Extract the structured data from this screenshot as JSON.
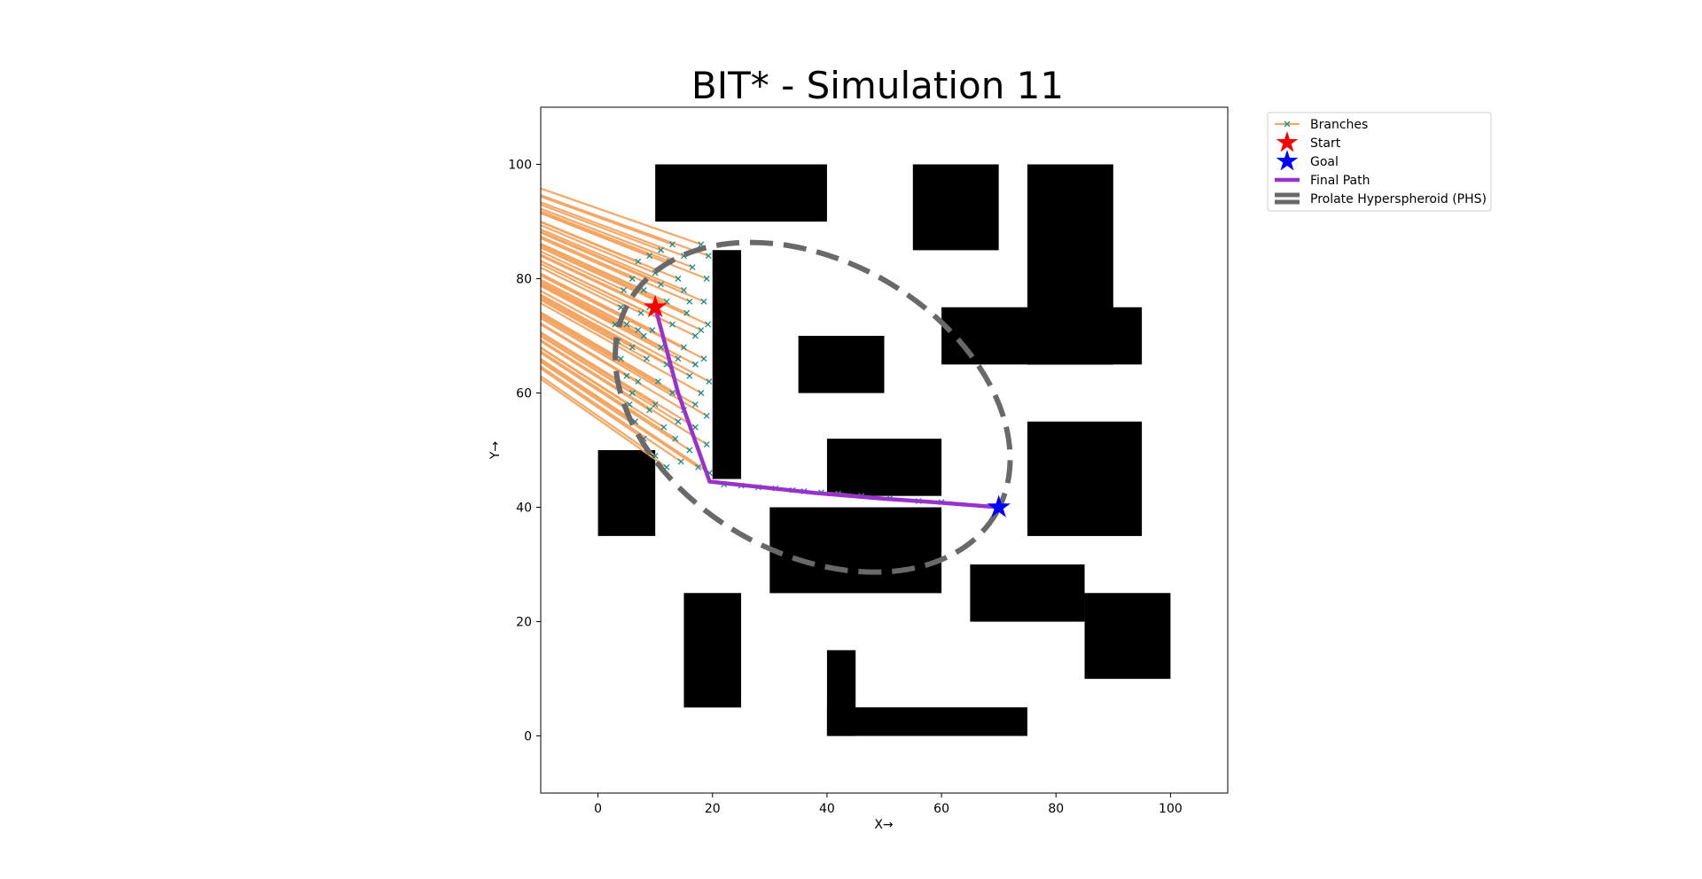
{
  "chart_data": {
    "type": "scatter",
    "title": "BIT* - Simulation 11",
    "xlabel": "X→",
    "ylabel": "Y→",
    "xlim": [
      -10,
      110
    ],
    "ylim": [
      -10,
      110
    ],
    "xticks": [
      0,
      20,
      40,
      60,
      80,
      100
    ],
    "yticks": [
      0,
      20,
      40,
      60,
      80,
      100
    ],
    "grid": false,
    "legend_placement": "outside top-right",
    "obstacles": [
      {
        "x": 10,
        "y": 90,
        "w": 30,
        "h": 10
      },
      {
        "x": 55,
        "y": 85,
        "w": 15,
        "h": 15
      },
      {
        "x": 75,
        "y": 65,
        "w": 15,
        "h": 35
      },
      {
        "x": 60,
        "y": 65,
        "w": 35,
        "h": 10
      },
      {
        "x": 20,
        "y": 45,
        "w": 5,
        "h": 40
      },
      {
        "x": 35,
        "y": 60,
        "w": 15,
        "h": 10
      },
      {
        "x": 40,
        "y": 42,
        "w": 20,
        "h": 10
      },
      {
        "x": 75,
        "y": 35,
        "w": 20,
        "h": 20
      },
      {
        "x": 0,
        "y": 35,
        "w": 10,
        "h": 15
      },
      {
        "x": 30,
        "y": 25,
        "w": 30,
        "h": 15
      },
      {
        "x": 65,
        "y": 20,
        "w": 20,
        "h": 10
      },
      {
        "x": 85,
        "y": 10,
        "w": 15,
        "h": 15
      },
      {
        "x": 15,
        "y": 5,
        "w": 10,
        "h": 20
      },
      {
        "x": 40,
        "y": 0,
        "w": 5,
        "h": 15
      },
      {
        "x": 40,
        "y": 0,
        "w": 35,
        "h": 5
      }
    ],
    "start": {
      "x": 10,
      "y": 75
    },
    "goal": {
      "x": 70,
      "y": 40
    },
    "final_path": [
      [
        10,
        75
      ],
      [
        14,
        60
      ],
      [
        19.5,
        44.5
      ],
      [
        38,
        42.5
      ],
      [
        50,
        41.5
      ],
      [
        60,
        40.8
      ],
      [
        70,
        40
      ]
    ],
    "phs": {
      "cx": 37.5,
      "cy": 57.5,
      "a": 37,
      "b": 25.5,
      "angle_deg": -30
    },
    "branch_nodes": [
      [
        3,
        72
      ],
      [
        3.5,
        69
      ],
      [
        4,
        66
      ],
      [
        4,
        75
      ],
      [
        4.5,
        78
      ],
      [
        5,
        63
      ],
      [
        5,
        72
      ],
      [
        5.5,
        58
      ],
      [
        6,
        80
      ],
      [
        6,
        68
      ],
      [
        6.5,
        55
      ],
      [
        7,
        83
      ],
      [
        7,
        62
      ],
      [
        7.5,
        74
      ],
      [
        8,
        52
      ],
      [
        8,
        78
      ],
      [
        8.5,
        66
      ],
      [
        9,
        84
      ],
      [
        9,
        57
      ],
      [
        9.5,
        71
      ],
      [
        10,
        49
      ],
      [
        10,
        81
      ],
      [
        10.5,
        62
      ],
      [
        11,
        68
      ],
      [
        11,
        85
      ],
      [
        11.5,
        54
      ],
      [
        12,
        76
      ],
      [
        12,
        47
      ],
      [
        12.5,
        83
      ],
      [
        13,
        60
      ],
      [
        13,
        72
      ],
      [
        13.5,
        52
      ],
      [
        14,
        80
      ],
      [
        14,
        66
      ],
      [
        14.5,
        48
      ],
      [
        15,
        84
      ],
      [
        15,
        57
      ],
      [
        15.5,
        74
      ],
      [
        16,
        50
      ],
      [
        16,
        63
      ],
      [
        16.5,
        82
      ],
      [
        17,
        70
      ],
      [
        17,
        54
      ],
      [
        17.5,
        47
      ],
      [
        18,
        86
      ],
      [
        18,
        60
      ],
      [
        18.5,
        76
      ],
      [
        18.5,
        66
      ],
      [
        19,
        51
      ],
      [
        19,
        80
      ],
      [
        19,
        56
      ],
      [
        19.2,
        72
      ],
      [
        19.3,
        84
      ],
      [
        19.4,
        62
      ],
      [
        19.5,
        46
      ],
      [
        15,
        78
      ],
      [
        13,
        86
      ],
      [
        11,
        79
      ],
      [
        8,
        70
      ],
      [
        6,
        60
      ],
      [
        17,
        65
      ],
      [
        14,
        55
      ],
      [
        12,
        65
      ],
      [
        16,
        76
      ],
      [
        18,
        71
      ],
      [
        9,
        75
      ],
      [
        7,
        71
      ],
      [
        10,
        58
      ],
      [
        15,
        68
      ],
      [
        17,
        58
      ],
      [
        22,
        44
      ],
      [
        25,
        43.8
      ],
      [
        28,
        43.5
      ],
      [
        31,
        43.3
      ],
      [
        34,
        43
      ],
      [
        36,
        42.8
      ],
      [
        39,
        42.6
      ],
      [
        42,
        42.4
      ],
      [
        46,
        42
      ],
      [
        51,
        41.6
      ],
      [
        56,
        41.1
      ],
      [
        60,
        40.9
      ]
    ],
    "legend": [
      "Branches",
      "Start",
      "Goal",
      "Final Path",
      "Prolate Hyperspheroid (PHS)"
    ],
    "colors": {
      "branch_line": "#f4a460",
      "branch_marker": "#1a8a8a",
      "start": "#ff0000",
      "goal": "#0000ff",
      "final_path": "#9932cc",
      "phs": "#696969",
      "obstacle": "#000000"
    }
  }
}
